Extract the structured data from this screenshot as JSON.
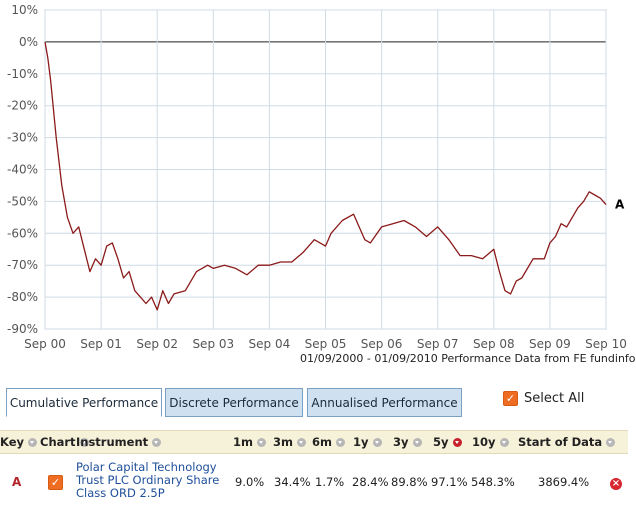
{
  "chart_data": {
    "type": "line",
    "series_key": "A",
    "line_color": "#8b1a1a",
    "y_ticks": [
      "10%",
      "0%",
      "-10%",
      "-20%",
      "-30%",
      "-40%",
      "-50%",
      "-60%",
      "-70%",
      "-80%",
      "-90%"
    ],
    "x_ticks": [
      "Sep 00",
      "Sep 01",
      "Sep 02",
      "Sep 03",
      "Sep 04",
      "Sep 05",
      "Sep 06",
      "Sep 07",
      "Sep 08",
      "Sep 09",
      "Sep 10"
    ],
    "ylim": [
      -90,
      10
    ],
    "xlim": [
      0,
      10
    ],
    "grid": true,
    "x": [
      0,
      0.05,
      0.1,
      0.2,
      0.3,
      0.4,
      0.5,
      0.6,
      0.7,
      0.8,
      0.9,
      1.0,
      1.1,
      1.2,
      1.3,
      1.4,
      1.5,
      1.6,
      1.7,
      1.8,
      1.9,
      2.0,
      2.1,
      2.2,
      2.3,
      2.5,
      2.7,
      2.9,
      3.0,
      3.2,
      3.4,
      3.6,
      3.8,
      4.0,
      4.2,
      4.4,
      4.6,
      4.8,
      5.0,
      5.1,
      5.3,
      5.5,
      5.7,
      5.8,
      6.0,
      6.2,
      6.4,
      6.6,
      6.8,
      7.0,
      7.2,
      7.4,
      7.6,
      7.8,
      8.0,
      8.1,
      8.2,
      8.3,
      8.4,
      8.5,
      8.7,
      8.9,
      9.0,
      9.1,
      9.2,
      9.3,
      9.4,
      9.5,
      9.6,
      9.7,
      9.8,
      9.9,
      10.0
    ],
    "values": [
      0,
      -5,
      -12,
      -30,
      -45,
      -55,
      -60,
      -58,
      -65,
      -72,
      -68,
      -70,
      -64,
      -63,
      -68,
      -74,
      -72,
      -78,
      -80,
      -82,
      -80,
      -84,
      -78,
      -82,
      -79,
      -78,
      -72,
      -70,
      -71,
      -70,
      -71,
      -73,
      -70,
      -70,
      -69,
      -69,
      -66,
      -62,
      -64,
      -60,
      -56,
      -54,
      -62,
      -63,
      -58,
      -57,
      -56,
      -58,
      -61,
      -58,
      -62,
      -67,
      -67,
      -68,
      -65,
      -72,
      -78,
      -79,
      -75,
      -74,
      -68,
      -68,
      -63,
      -61,
      -57,
      -58,
      -55,
      -52,
      -50,
      -47,
      -48,
      -49,
      -51
    ]
  },
  "source_note": "01/09/2000 - 01/09/2010 Performance Data from FE fundinfo",
  "tabs": {
    "cumulative": "Cumulative Performance",
    "discrete": "Discrete Performance",
    "annualised": "Annualised Performance"
  },
  "select_all_label": "Select All",
  "table": {
    "headers": {
      "key": "Key",
      "chart": "Chart",
      "instrument": "Instrument",
      "m1": "1m",
      "m3": "3m",
      "m6": "6m",
      "y1": "1y",
      "y3": "3y",
      "y5": "5y",
      "y10": "10y",
      "start": "Start of Data"
    },
    "rows": [
      {
        "key": "A",
        "instrument": "Polar Capital Technology Trust PLC Ordinary Share Class ORD 2.5P",
        "m1": "9.0%",
        "m3": "34.4%",
        "m6": "1.7%",
        "y1": "28.4%",
        "y3": "89.8%",
        "y5": "97.1%",
        "y10": "548.3%",
        "start": "3869.4%"
      }
    ]
  }
}
